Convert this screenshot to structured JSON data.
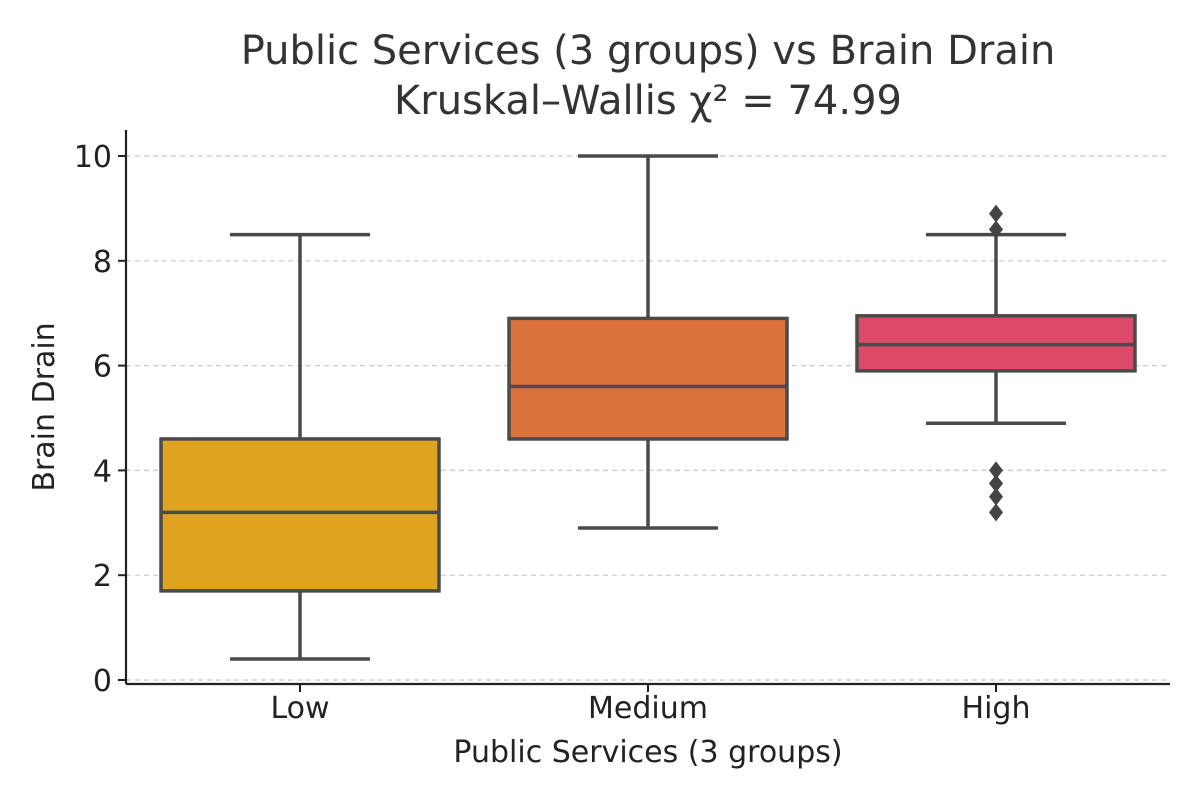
{
  "chart_data": {
    "type": "box",
    "title": "Public Services (3 groups) vs Brain Drain",
    "subtitle": "Kruskal–Wallis χ² = 74.99",
    "xlabel": "Public Services (3 groups)",
    "ylabel": "Brain Drain",
    "ylim": [
      -0.1,
      10.5
    ],
    "yticks": [
      0,
      2,
      4,
      6,
      8,
      10
    ],
    "grid": "horizontal dashed",
    "categories": [
      "Low",
      "Medium",
      "High"
    ],
    "boxes": [
      {
        "category": "Low",
        "whisker_low": 0.4,
        "q1": 1.7,
        "median": 3.2,
        "q3": 4.6,
        "whisker_high": 8.5,
        "outliers": [],
        "color": "#E0A320"
      },
      {
        "category": "Medium",
        "whisker_low": 2.9,
        "q1": 4.6,
        "median": 5.6,
        "q3": 6.9,
        "whisker_high": 10.0,
        "outliers": [],
        "color": "#DC723B"
      },
      {
        "category": "High",
        "whisker_low": 4.9,
        "q1": 5.9,
        "median": 6.4,
        "q3": 6.95,
        "whisker_high": 8.5,
        "outliers": [
          8.9,
          8.6,
          4.0,
          3.75,
          3.5,
          3.2
        ],
        "color": "#DD4968"
      }
    ]
  }
}
